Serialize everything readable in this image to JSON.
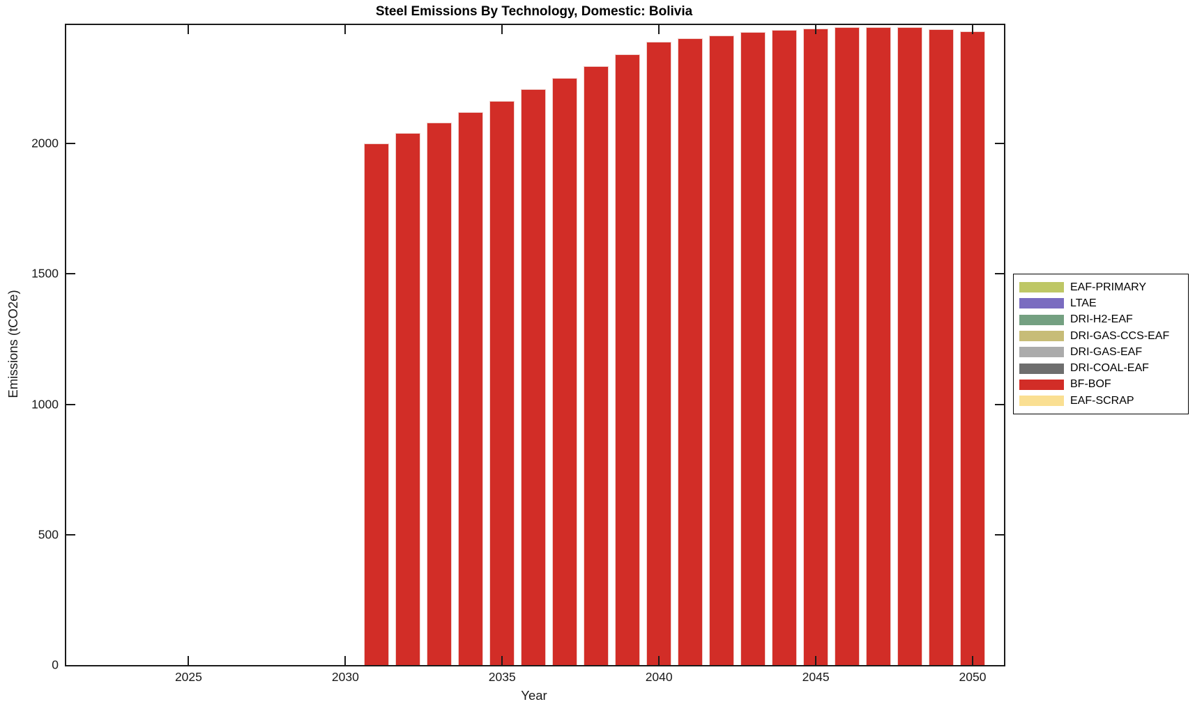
{
  "title": "Steel Emissions By Technology, Domestic: Bolivia",
  "chart_data": {
    "type": "bar",
    "stacked": true,
    "title": "Steel Emissions By Technology, Domestic: Bolivia",
    "xlabel": "Year",
    "ylabel": "Emissions (tCO2e)",
    "xlim": [
      2021.1,
      2051.0
    ],
    "ylim": [
      0,
      2455
    ],
    "x_ticks": [
      2025,
      2030,
      2035,
      2040,
      2045,
      2050
    ],
    "y_ticks": [
      0,
      500,
      1000,
      1500,
      2000
    ],
    "grid": false,
    "legend_position": "right-outside",
    "bar_width_years": 0.8,
    "years": [
      2031,
      2032,
      2033,
      2034,
      2035,
      2036,
      2037,
      2038,
      2039,
      2040,
      2041,
      2042,
      2043,
      2044,
      2045,
      2046,
      2047,
      2048,
      2049,
      2050
    ],
    "series": [
      {
        "name": "EAF-PRIMARY",
        "color": "#BEC765",
        "values": [
          0,
          0,
          0,
          0,
          0,
          0,
          0,
          0,
          0,
          0,
          0,
          0,
          0,
          0,
          0,
          0,
          0,
          0,
          0,
          0
        ]
      },
      {
        "name": "LTAE",
        "color": "#7A6CC0",
        "values": [
          0,
          0,
          0,
          0,
          0,
          0,
          0,
          0,
          0,
          0,
          0,
          0,
          0,
          0,
          0,
          0,
          0,
          0,
          0,
          0
        ]
      },
      {
        "name": "DRI-H2-EAF",
        "color": "#74A081",
        "values": [
          0,
          0,
          0,
          0,
          0,
          0,
          0,
          0,
          0,
          0,
          0,
          0,
          0,
          0,
          0,
          0,
          0,
          0,
          0,
          0
        ]
      },
      {
        "name": "DRI-GAS-CCS-EAF",
        "color": "#C7BC77",
        "values": [
          0,
          0,
          0,
          0,
          0,
          0,
          0,
          0,
          0,
          0,
          0,
          0,
          0,
          0,
          0,
          0,
          0,
          0,
          0,
          0
        ]
      },
      {
        "name": "DRI-GAS-EAF",
        "color": "#ABABAB",
        "values": [
          0,
          0,
          0,
          0,
          0,
          0,
          0,
          0,
          0,
          0,
          0,
          0,
          0,
          0,
          0,
          0,
          0,
          0,
          0,
          0
        ]
      },
      {
        "name": "DRI-COAL-EAF",
        "color": "#6E6E6E",
        "values": [
          0,
          0,
          0,
          0,
          0,
          0,
          0,
          0,
          0,
          0,
          0,
          0,
          0,
          0,
          0,
          0,
          0,
          0,
          0,
          0
        ]
      },
      {
        "name": "BF-BOF",
        "color": "#D22D27",
        "values": [
          2000,
          2040,
          2081,
          2122,
          2165,
          2208,
          2252,
          2297,
          2343,
          2390,
          2404,
          2416,
          2427,
          2436,
          2443,
          2447,
          2448,
          2446,
          2440,
          2431
        ]
      },
      {
        "name": "EAF-SCRAP",
        "color": "#FADF92",
        "values": [
          0,
          0,
          0,
          0,
          0,
          0,
          0,
          0,
          0,
          0,
          0,
          0,
          0,
          0,
          0,
          0,
          0,
          0,
          0,
          0
        ]
      }
    ],
    "legend_order": [
      "EAF-PRIMARY",
      "LTAE",
      "DRI-H2-EAF",
      "DRI-GAS-CCS-EAF",
      "DRI-GAS-EAF",
      "DRI-COAL-EAF",
      "BF-BOF",
      "EAF-SCRAP"
    ]
  },
  "axis_color": "#1a1a1a"
}
